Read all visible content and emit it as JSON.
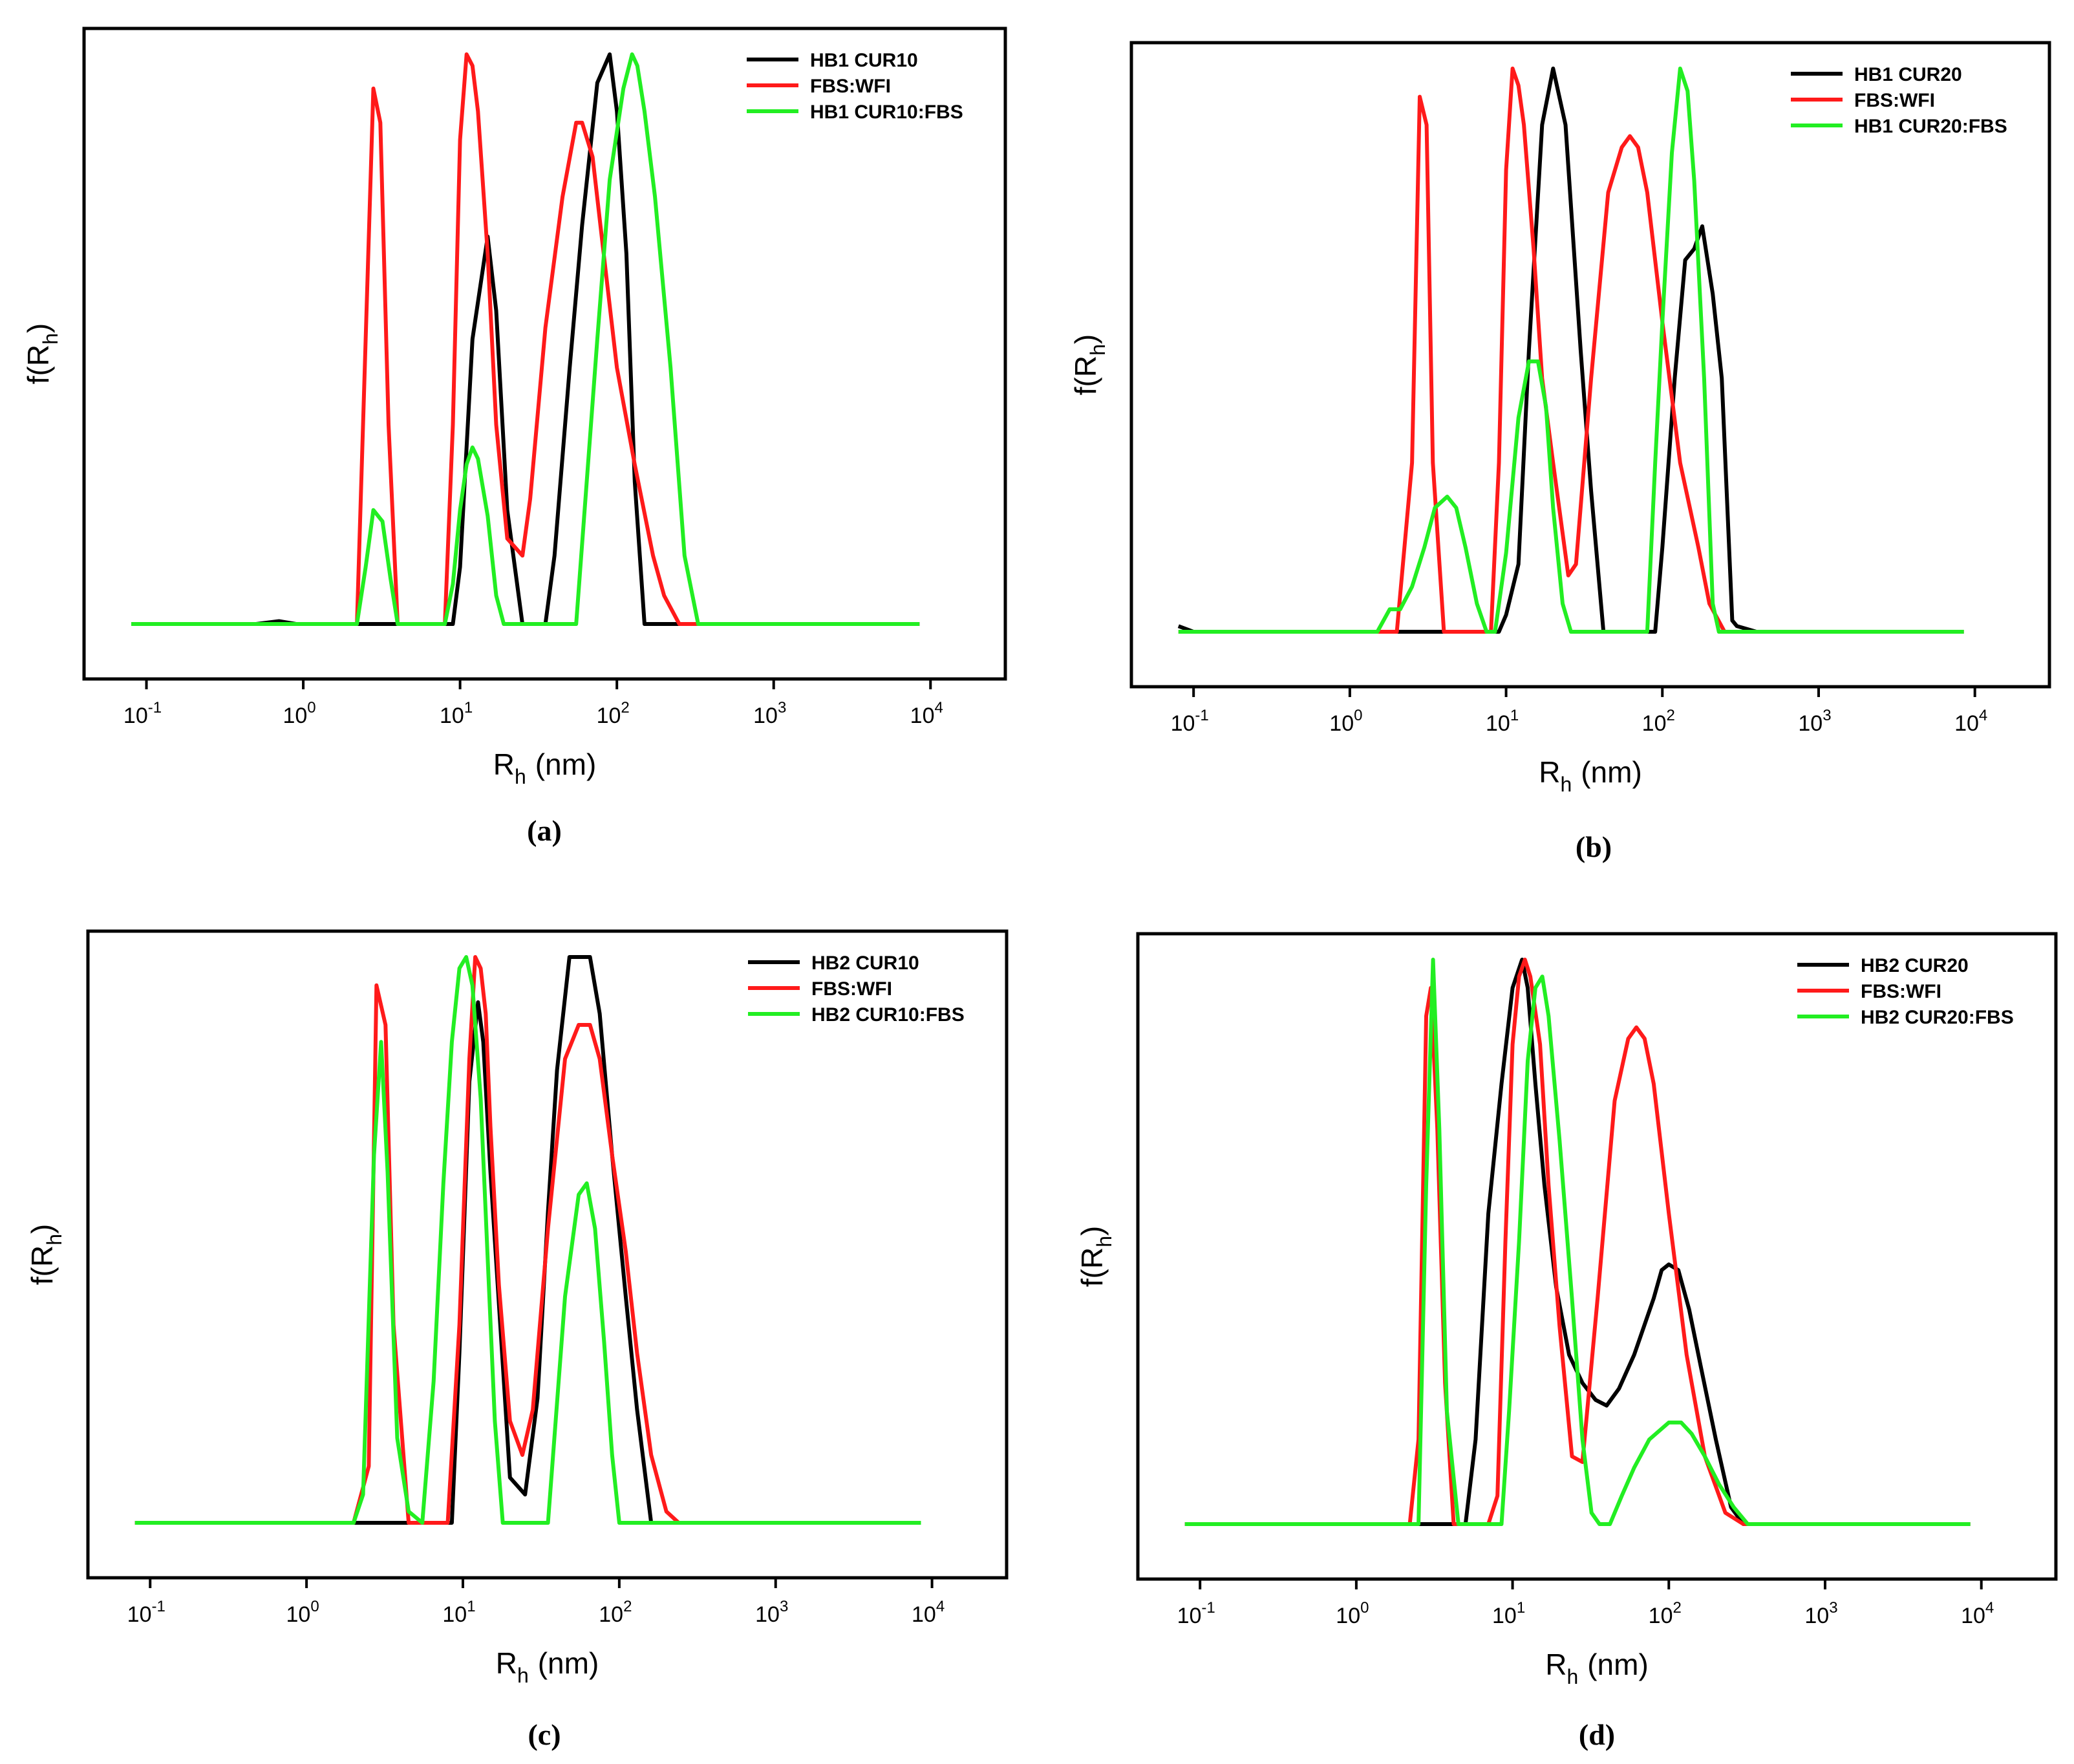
{
  "figure_title": "",
  "colors": {
    "black": "#000000",
    "red": "#ff1a1a",
    "green": "#22ee22"
  },
  "chart_data": [
    {
      "type": "line",
      "panel": "(a)",
      "title": "",
      "xlabel_main": "R",
      "xlabel_sub": "h",
      "xlabel_unit": "(nm)",
      "ylabel_main": "f(R",
      "ylabel_sub": "h",
      "ylabel_close": ")",
      "xscale": "log",
      "xlim": [
        0.04,
        30000
      ],
      "ylim": [
        0,
        1.0
      ],
      "xticks": [
        {
          "value": 0.1,
          "base": "10",
          "exp": "-1"
        },
        {
          "value": 1,
          "base": "10",
          "exp": "0"
        },
        {
          "value": 10,
          "base": "10",
          "exp": "1"
        },
        {
          "value": 100,
          "base": "10",
          "exp": "2"
        },
        {
          "value": 1000,
          "base": "10",
          "exp": "3"
        },
        {
          "value": 10000,
          "base": "10",
          "exp": "4"
        }
      ],
      "legend": "top-right",
      "series": [
        {
          "name": "HB1 CUR10",
          "color": "#000000",
          "x": [
            0.08,
            0.5,
            0.7,
            0.9,
            1.5,
            2.5,
            5,
            9,
            10,
            12,
            15,
            17,
            20,
            25,
            30,
            35,
            40,
            50,
            60,
            75,
            90,
            100,
            115,
            130,
            150,
            200,
            500,
            8500
          ],
          "y": [
            0,
            0,
            0.005,
            0,
            0,
            0,
            0,
            0,
            0.1,
            0.5,
            0.68,
            0.55,
            0.2,
            0,
            0,
            0,
            0.12,
            0.45,
            0.7,
            0.95,
            1.0,
            0.9,
            0.65,
            0.25,
            0,
            0,
            0,
            0
          ]
        },
        {
          "name": "FBS:WFI",
          "color": "#ff1a1a",
          "x": [
            0.08,
            2.2,
            2.5,
            2.8,
            3.1,
            3.5,
            4,
            8,
            9,
            10,
            11,
            12,
            13,
            15,
            17,
            20,
            25,
            28,
            35,
            45,
            55,
            60,
            70,
            80,
            100,
            130,
            170,
            200,
            250,
            350,
            8500
          ],
          "y": [
            0,
            0,
            0.5,
            0.94,
            0.88,
            0.35,
            0,
            0,
            0.35,
            0.85,
            1.0,
            0.98,
            0.9,
            0.65,
            0.35,
            0.15,
            0.12,
            0.22,
            0.52,
            0.75,
            0.88,
            0.88,
            0.82,
            0.68,
            0.45,
            0.28,
            0.12,
            0.05,
            0,
            0,
            0
          ]
        },
        {
          "name": "HB1 CUR10:FBS",
          "color": "#22ee22",
          "x": [
            0.08,
            2.2,
            2.5,
            2.8,
            3.2,
            3.6,
            4,
            8,
            9,
            10,
            11,
            12,
            13,
            15,
            17,
            19,
            25,
            40,
            55,
            75,
            90,
            110,
            125,
            135,
            150,
            175,
            220,
            270,
            330,
            8500
          ],
          "y": [
            0,
            0,
            0.1,
            0.2,
            0.18,
            0.08,
            0,
            0,
            0.07,
            0.2,
            0.28,
            0.31,
            0.29,
            0.19,
            0.05,
            0,
            0,
            0,
            0,
            0.5,
            0.78,
            0.94,
            1.0,
            0.98,
            0.9,
            0.75,
            0.45,
            0.12,
            0,
            0
          ]
        }
      ]
    },
    {
      "type": "line",
      "panel": "(b)",
      "title": "",
      "xlabel_main": "R",
      "xlabel_sub": "h",
      "xlabel_unit": "(nm)",
      "ylabel_main": "f(R",
      "ylabel_sub": "h",
      "ylabel_close": ")",
      "xscale": "log",
      "xlim": [
        0.04,
        30000
      ],
      "ylim": [
        0,
        1.0
      ],
      "xticks": [
        {
          "value": 0.1,
          "base": "10",
          "exp": "-1"
        },
        {
          "value": 1,
          "base": "10",
          "exp": "0"
        },
        {
          "value": 10,
          "base": "10",
          "exp": "1"
        },
        {
          "value": 100,
          "base": "10",
          "exp": "2"
        },
        {
          "value": 1000,
          "base": "10",
          "exp": "3"
        },
        {
          "value": 10000,
          "base": "10",
          "exp": "4"
        }
      ],
      "legend": "top-right",
      "series": [
        {
          "name": "HB1 CUR20",
          "color": "#000000",
          "x": [
            0.08,
            0.1,
            0.12,
            0.5,
            2,
            5,
            8,
            9,
            10,
            12,
            14,
            17,
            20,
            24,
            30,
            35,
            42,
            45,
            60,
            90,
            100,
            120,
            140,
            160,
            180,
            210,
            240,
            280,
            300,
            400,
            8500
          ],
          "y": [
            0.01,
            0,
            0,
            0,
            0,
            0,
            0,
            0,
            0.03,
            0.12,
            0.5,
            0.9,
            1.0,
            0.9,
            0.5,
            0.25,
            0,
            0,
            0,
            0,
            0.15,
            0.45,
            0.66,
            0.68,
            0.72,
            0.6,
            0.45,
            0.02,
            0.01,
            0,
            0
          ]
        },
        {
          "name": "FBS:WFI",
          "color": "#ff1a1a",
          "x": [
            0.08,
            2,
            2.5,
            2.8,
            3.1,
            3.4,
            4,
            8,
            9,
            10,
            11,
            12,
            13,
            15,
            17,
            20,
            25,
            28,
            35,
            45,
            55,
            62,
            70,
            80,
            100,
            130,
            170,
            200,
            250,
            320,
            8500
          ],
          "y": [
            0,
            0,
            0.3,
            0.95,
            0.9,
            0.3,
            0,
            0,
            0.3,
            0.82,
            1.0,
            0.97,
            0.9,
            0.68,
            0.45,
            0.3,
            0.1,
            0.12,
            0.45,
            0.78,
            0.86,
            0.88,
            0.86,
            0.78,
            0.55,
            0.3,
            0.15,
            0.05,
            0,
            0,
            0
          ]
        },
        {
          "name": "HB1 CUR20:FBS",
          "color": "#22ee22",
          "x": [
            0.08,
            1.5,
            1.8,
            2.1,
            2.5,
            3,
            3.5,
            4.2,
            4.8,
            5.5,
            6.5,
            7.5,
            8.5,
            10,
            12,
            14,
            16,
            18,
            20,
            23,
            26,
            30,
            50,
            70,
            80,
            90,
            100,
            115,
            130,
            145,
            160,
            185,
            210,
            230,
            250,
            8500
          ],
          "y": [
            0,
            0,
            0.04,
            0.04,
            0.08,
            0.15,
            0.22,
            0.24,
            0.22,
            0.15,
            0.05,
            0,
            0,
            0.14,
            0.38,
            0.48,
            0.48,
            0.4,
            0.22,
            0.05,
            0,
            0,
            0,
            0,
            0,
            0.3,
            0.55,
            0.85,
            1.0,
            0.96,
            0.8,
            0.45,
            0.05,
            0,
            0,
            0
          ]
        }
      ]
    },
    {
      "type": "line",
      "panel": "(c)",
      "title": "",
      "xlabel_main": "R",
      "xlabel_sub": "h",
      "xlabel_unit": "(nm)",
      "ylabel_main": "f(R",
      "ylabel_sub": "h",
      "ylabel_close": ")",
      "xscale": "log",
      "xlim": [
        0.04,
        30000
      ],
      "ylim": [
        0,
        1.0
      ],
      "xticks": [
        {
          "value": 0.1,
          "base": "10",
          "exp": "-1"
        },
        {
          "value": 1,
          "base": "10",
          "exp": "0"
        },
        {
          "value": 10,
          "base": "10",
          "exp": "1"
        },
        {
          "value": 100,
          "base": "10",
          "exp": "2"
        },
        {
          "value": 1000,
          "base": "10",
          "exp": "3"
        },
        {
          "value": 10000,
          "base": "10",
          "exp": "4"
        }
      ],
      "legend": "top-right",
      "series": [
        {
          "name": "HB2 CUR10",
          "color": "#000000",
          "x": [
            0.08,
            2,
            6,
            8.5,
            9.5,
            11,
            12.5,
            13.5,
            15,
            18,
            20,
            25,
            30,
            35,
            40,
            48,
            55,
            65,
            75,
            90,
            110,
            130,
            160,
            200,
            8500
          ],
          "y": [
            0,
            0,
            0,
            0,
            0.3,
            0.78,
            0.92,
            0.85,
            0.62,
            0.28,
            0.08,
            0.05,
            0.22,
            0.55,
            0.8,
            1.0,
            1.0,
            1.0,
            0.9,
            0.65,
            0.4,
            0.2,
            0,
            0,
            0
          ]
        },
        {
          "name": "FBS:WFI",
          "color": "#ff1a1a",
          "x": [
            0.08,
            2,
            2.5,
            2.8,
            3.2,
            3.6,
            4.5,
            6,
            8,
            9.5,
            11,
            12,
            13,
            14,
            15,
            17,
            20,
            24,
            28,
            35,
            45,
            55,
            65,
            75,
            90,
            110,
            130,
            160,
            200,
            240,
            8500
          ],
          "y": [
            0,
            0,
            0.1,
            0.95,
            0.88,
            0.35,
            0,
            0,
            0,
            0.35,
            0.82,
            1.0,
            0.98,
            0.9,
            0.7,
            0.42,
            0.18,
            0.12,
            0.2,
            0.52,
            0.82,
            0.88,
            0.88,
            0.82,
            0.65,
            0.48,
            0.3,
            0.12,
            0.02,
            0,
            0
          ]
        },
        {
          "name": "HB2 CUR10:FBS",
          "color": "#22ee22",
          "x": [
            0.08,
            2,
            2.3,
            2.7,
            3.0,
            3.3,
            3.8,
            4.5,
            5.5,
            6.5,
            7.5,
            8.5,
            9.5,
            10.5,
            11.5,
            13,
            14.5,
            16,
            18,
            21,
            25,
            35,
            45,
            55,
            62,
            70,
            80,
            90,
            100,
            110,
            120,
            8500
          ],
          "y": [
            0,
            0,
            0.05,
            0.65,
            0.85,
            0.62,
            0.15,
            0.02,
            0,
            0.25,
            0.6,
            0.85,
            0.98,
            1.0,
            0.95,
            0.75,
            0.45,
            0.18,
            0,
            0,
            0,
            0,
            0.4,
            0.58,
            0.6,
            0.52,
            0.32,
            0.12,
            0,
            0,
            0,
            0
          ]
        }
      ]
    },
    {
      "type": "line",
      "panel": "(d)",
      "title": "",
      "xlabel_main": "R",
      "xlabel_sub": "h",
      "xlabel_unit": "(nm)",
      "ylabel_main": "f(R",
      "ylabel_sub": "h",
      "ylabel_close": ")",
      "xscale": "log",
      "xlim": [
        0.04,
        30000
      ],
      "ylim": [
        0,
        1.0
      ],
      "xticks": [
        {
          "value": 0.1,
          "base": "10",
          "exp": "-1"
        },
        {
          "value": 1,
          "base": "10",
          "exp": "0"
        },
        {
          "value": 10,
          "base": "10",
          "exp": "1"
        },
        {
          "value": 100,
          "base": "10",
          "exp": "2"
        },
        {
          "value": 1000,
          "base": "10",
          "exp": "3"
        },
        {
          "value": 10000,
          "base": "10",
          "exp": "4"
        }
      ],
      "legend": "top-right",
      "series": [
        {
          "name": "HB2 CUR20",
          "color": "#000000",
          "x": [
            0.08,
            1.5,
            4.5,
            5,
            5.8,
            7,
            8.5,
            10,
            11.5,
            12.5,
            14,
            16,
            19,
            23,
            28,
            34,
            40,
            48,
            60,
            80,
            90,
            100,
            115,
            135,
            160,
            200,
            250,
            300,
            8500
          ],
          "y": [
            0,
            0,
            0,
            0,
            0.15,
            0.55,
            0.78,
            0.95,
            1.0,
            0.95,
            0.78,
            0.6,
            0.42,
            0.3,
            0.25,
            0.22,
            0.21,
            0.24,
            0.3,
            0.4,
            0.45,
            0.46,
            0.45,
            0.38,
            0.28,
            0.15,
            0.03,
            0,
            0
          ]
        },
        {
          "name": "FBS:WFI",
          "color": "#ff1a1a",
          "x": [
            0.08,
            2.2,
            2.5,
            2.8,
            3.0,
            3.3,
            3.7,
            4.2,
            7,
            8,
            9,
            10,
            11,
            12,
            13,
            15,
            17,
            20,
            24,
            28,
            35,
            45,
            55,
            62,
            70,
            80,
            100,
            130,
            170,
            230,
            300,
            8500
          ],
          "y": [
            0,
            0,
            0.15,
            0.9,
            0.95,
            0.7,
            0.25,
            0,
            0,
            0.05,
            0.5,
            0.85,
            0.97,
            1.0,
            0.97,
            0.85,
            0.6,
            0.35,
            0.12,
            0.11,
            0.4,
            0.75,
            0.86,
            0.88,
            0.86,
            0.78,
            0.55,
            0.3,
            0.12,
            0.02,
            0,
            0
          ]
        },
        {
          "name": "HB2 CUR20:FBS",
          "color": "#22ee22",
          "x": [
            0.08,
            2.5,
            2.8,
            3.1,
            3.4,
            3.8,
            4.5,
            6,
            7.5,
            8.5,
            9.5,
            11,
            12.5,
            14,
            15.5,
            17,
            20,
            24,
            28,
            32,
            36,
            42,
            50,
            60,
            75,
            100,
            120,
            140,
            170,
            210,
            260,
            320,
            360,
            8500
          ],
          "y": [
            0,
            0,
            0.6,
            1.0,
            0.7,
            0.2,
            0,
            0,
            0,
            0,
            0.2,
            0.5,
            0.82,
            0.95,
            0.97,
            0.9,
            0.68,
            0.4,
            0.15,
            0.02,
            0,
            0,
            0.05,
            0.1,
            0.15,
            0.18,
            0.18,
            0.16,
            0.12,
            0.07,
            0.03,
            0,
            0,
            0
          ]
        }
      ]
    }
  ]
}
